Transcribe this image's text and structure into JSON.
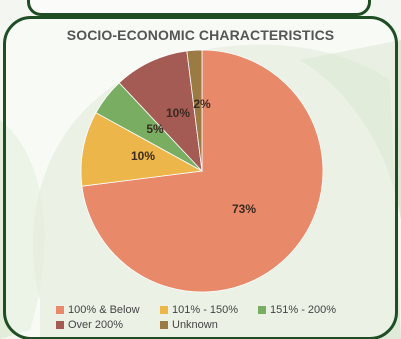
{
  "chart_data": {
    "type": "pie",
    "title": "SOCIO-ECONOMIC CHARACTERISTICS",
    "slices": [
      {
        "name": "100% & Below",
        "value": 73,
        "label": "73%",
        "color": "#e8896a"
      },
      {
        "name": "101% - 150%",
        "value": 10,
        "label": "10%",
        "color": "#ecb64a"
      },
      {
        "name": "151% - 200%",
        "value": 5,
        "label": "5%",
        "color": "#79ad62"
      },
      {
        "name": "Over 200%",
        "value": 10,
        "label": "10%",
        "color": "#a45b54"
      },
      {
        "name": "Unknown",
        "value": 2,
        "label": "2%",
        "color": "#9c7a44"
      }
    ],
    "legend_position": "bottom"
  }
}
